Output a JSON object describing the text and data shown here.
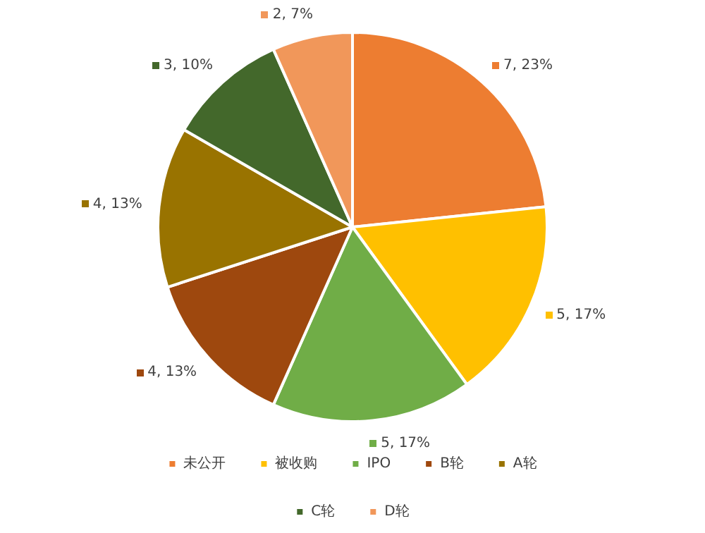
{
  "chart_data": {
    "type": "pie",
    "categories": [
      "未公开",
      "被收购",
      "IPO",
      "B轮",
      "A轮",
      "C轮",
      "D轮"
    ],
    "values": [
      7,
      5,
      5,
      4,
      4,
      3,
      2
    ],
    "colors": [
      "#ed7d31",
      "#ffc000",
      "#70ad47",
      "#9e480e",
      "#997300",
      "#43682b",
      "#f1975a"
    ],
    "value_labels": [
      "7, 23%",
      "5, 17%",
      "5, 17%",
      "4, 13%",
      "4, 13%",
      "3, 10%",
      "2, 7%"
    ],
    "legend": "bottom"
  }
}
